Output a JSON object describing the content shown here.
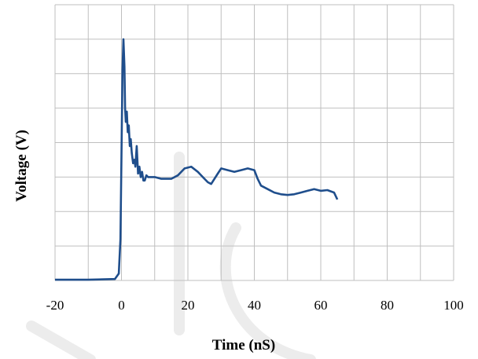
{
  "chart_data": {
    "type": "line",
    "title": "",
    "xlabel": "Time  (nS)",
    "ylabel": "Voltage (V)",
    "xlim": [
      -20,
      100
    ],
    "xticks": [
      "-20",
      "0",
      "20",
      "40",
      "60",
      "80",
      "100"
    ],
    "ylim": [
      0,
      8
    ],
    "yticks_shown": false,
    "grid": true,
    "legend": "none",
    "series": [
      {
        "color": "#1f4e8c",
        "x": [
          -20,
          -10,
          -2,
          -0.8,
          -0.3,
          0,
          0.3,
          0.6,
          0.9,
          1.1,
          1.3,
          1.6,
          1.9,
          2.2,
          2.5,
          2.8,
          3.1,
          3.5,
          3.9,
          4.2,
          4.6,
          5,
          5.4,
          5.8,
          6.2,
          6.6,
          7,
          7.5,
          8,
          10,
          12,
          15,
          17,
          19,
          21,
          23,
          25,
          26,
          27,
          29,
          30,
          32,
          34,
          36,
          38,
          40,
          41,
          42,
          44,
          46,
          48,
          50,
          52,
          54,
          56,
          58,
          60,
          62,
          64,
          65
        ],
        "y": [
          0.02,
          0.02,
          0.04,
          0.2,
          1.2,
          3.6,
          6.1,
          7.0,
          6.2,
          5.0,
          4.6,
          4.9,
          4.3,
          4.5,
          3.9,
          4.1,
          3.7,
          3.4,
          3.5,
          3.3,
          3.9,
          3.1,
          3.3,
          3.0,
          3.15,
          2.9,
          2.9,
          3.05,
          3.0,
          3.0,
          2.95,
          2.95,
          3.05,
          3.25,
          3.3,
          3.15,
          2.95,
          2.85,
          2.8,
          3.1,
          3.25,
          3.2,
          3.15,
          3.2,
          3.25,
          3.2,
          2.95,
          2.75,
          2.65,
          2.55,
          2.5,
          2.48,
          2.5,
          2.55,
          2.6,
          2.65,
          2.6,
          2.62,
          2.55,
          2.35
        ]
      }
    ]
  },
  "watermark": {
    "color": "#ececec"
  }
}
